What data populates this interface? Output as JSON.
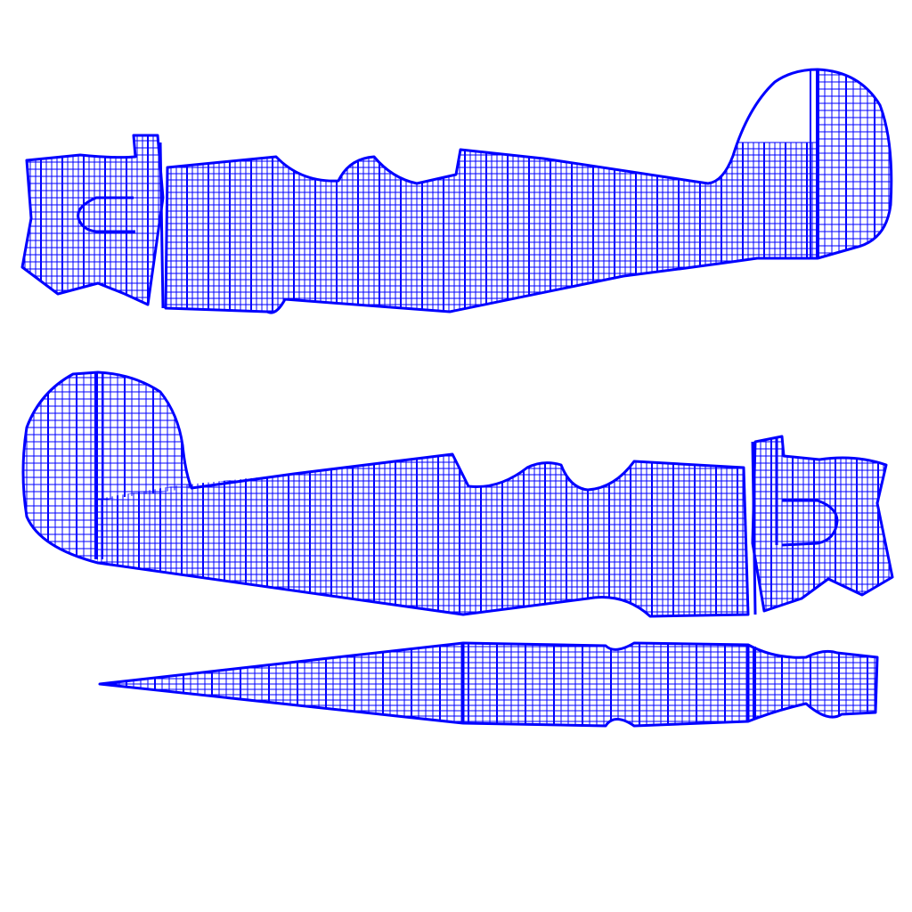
{
  "canvas": {
    "background": "#ffffff",
    "wire_color": "#0000ff"
  },
  "islands": [
    {
      "name": "fuselage-right-side",
      "facing": "right",
      "mesh": "quad-grid"
    },
    {
      "name": "fuselage-left-side",
      "facing": "left",
      "mesh": "quad-grid"
    },
    {
      "name": "fuselage-top-strip",
      "facing": "top",
      "mesh": "quad-grid"
    }
  ]
}
